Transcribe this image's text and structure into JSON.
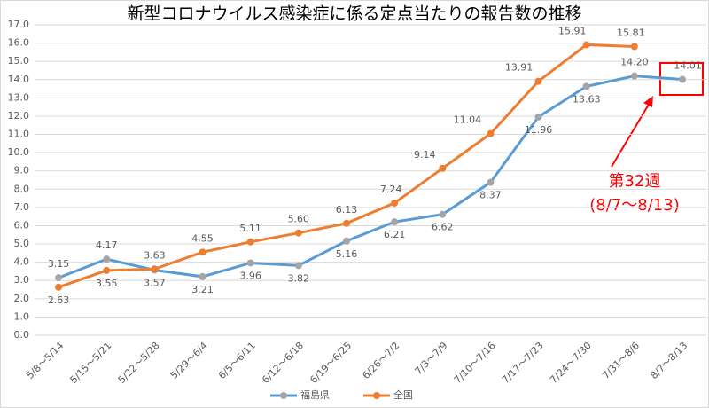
{
  "chart_data": {
    "type": "line",
    "title": "新型コロナウイルス感染症に係る定点当たりの報告数の推移",
    "categories": [
      "5/8〜5/14",
      "5/15〜5/21",
      "5/22〜5/28",
      "5/29〜6/4",
      "6/5〜6/11",
      "6/12〜6/18",
      "6/19〜6/25",
      "6/26〜7/2",
      "7/3〜7/9",
      "7/10〜7/16",
      "7/17〜7/23",
      "7/24〜7/30",
      "7/31〜8/6",
      "8/7〜8/13"
    ],
    "series": [
      {
        "name": "福島県",
        "color": "#5b9bd5",
        "marker_color": "#a5a5a5",
        "values": [
          3.15,
          4.17,
          3.57,
          3.21,
          3.96,
          3.82,
          5.16,
          6.21,
          6.62,
          8.37,
          11.96,
          13.63,
          14.2,
          14.01
        ],
        "value_labels": [
          "3.15",
          "4.17",
          "3.57",
          "3.21",
          "3.96",
          "3.82",
          "5.16",
          "6.21",
          "6.62",
          "8.37",
          "11.96",
          "13.63",
          "14.20",
          "14.01"
        ]
      },
      {
        "name": "全国",
        "color": "#ed7d31",
        "marker_color": "#ed7d31",
        "values": [
          2.63,
          3.55,
          3.63,
          4.55,
          5.11,
          5.6,
          6.13,
          7.24,
          9.14,
          11.04,
          13.91,
          15.91,
          15.81,
          null
        ],
        "value_labels": [
          "2.63",
          "3.55",
          "3.63",
          "4.55",
          "5.11",
          "5.60",
          "6.13",
          "7.24",
          "9.14",
          "11.04",
          "13.91",
          "15.91",
          "15.81",
          null
        ]
      }
    ],
    "ylim": [
      0,
      17
    ],
    "yticks": [
      {
        "value": 0,
        "label": "0.0"
      },
      {
        "value": 1,
        "label": "1.0"
      },
      {
        "value": 2,
        "label": "2.0"
      },
      {
        "value": 3,
        "label": "3.0"
      },
      {
        "value": 4,
        "label": "4.0"
      },
      {
        "value": 5,
        "label": "5.0"
      },
      {
        "value": 6,
        "label": "6.0"
      },
      {
        "value": 7,
        "label": "7.0"
      },
      {
        "value": 8,
        "label": "8.0"
      },
      {
        "value": 9,
        "label": "9.0"
      },
      {
        "value": 10,
        "label": "10.0"
      },
      {
        "value": 11,
        "label": "11.0"
      },
      {
        "value": 12,
        "label": "12.0"
      },
      {
        "value": 13,
        "label": "13.0"
      },
      {
        "value": 14,
        "label": "14.0"
      },
      {
        "value": 15,
        "label": "15.0"
      },
      {
        "value": 16,
        "label": "16.0"
      },
      {
        "value": 17,
        "label": "17.0"
      }
    ],
    "grid": true,
    "legend": "bottom",
    "annotations": [
      "第32週",
      "(8/7〜8/13)"
    ]
  }
}
